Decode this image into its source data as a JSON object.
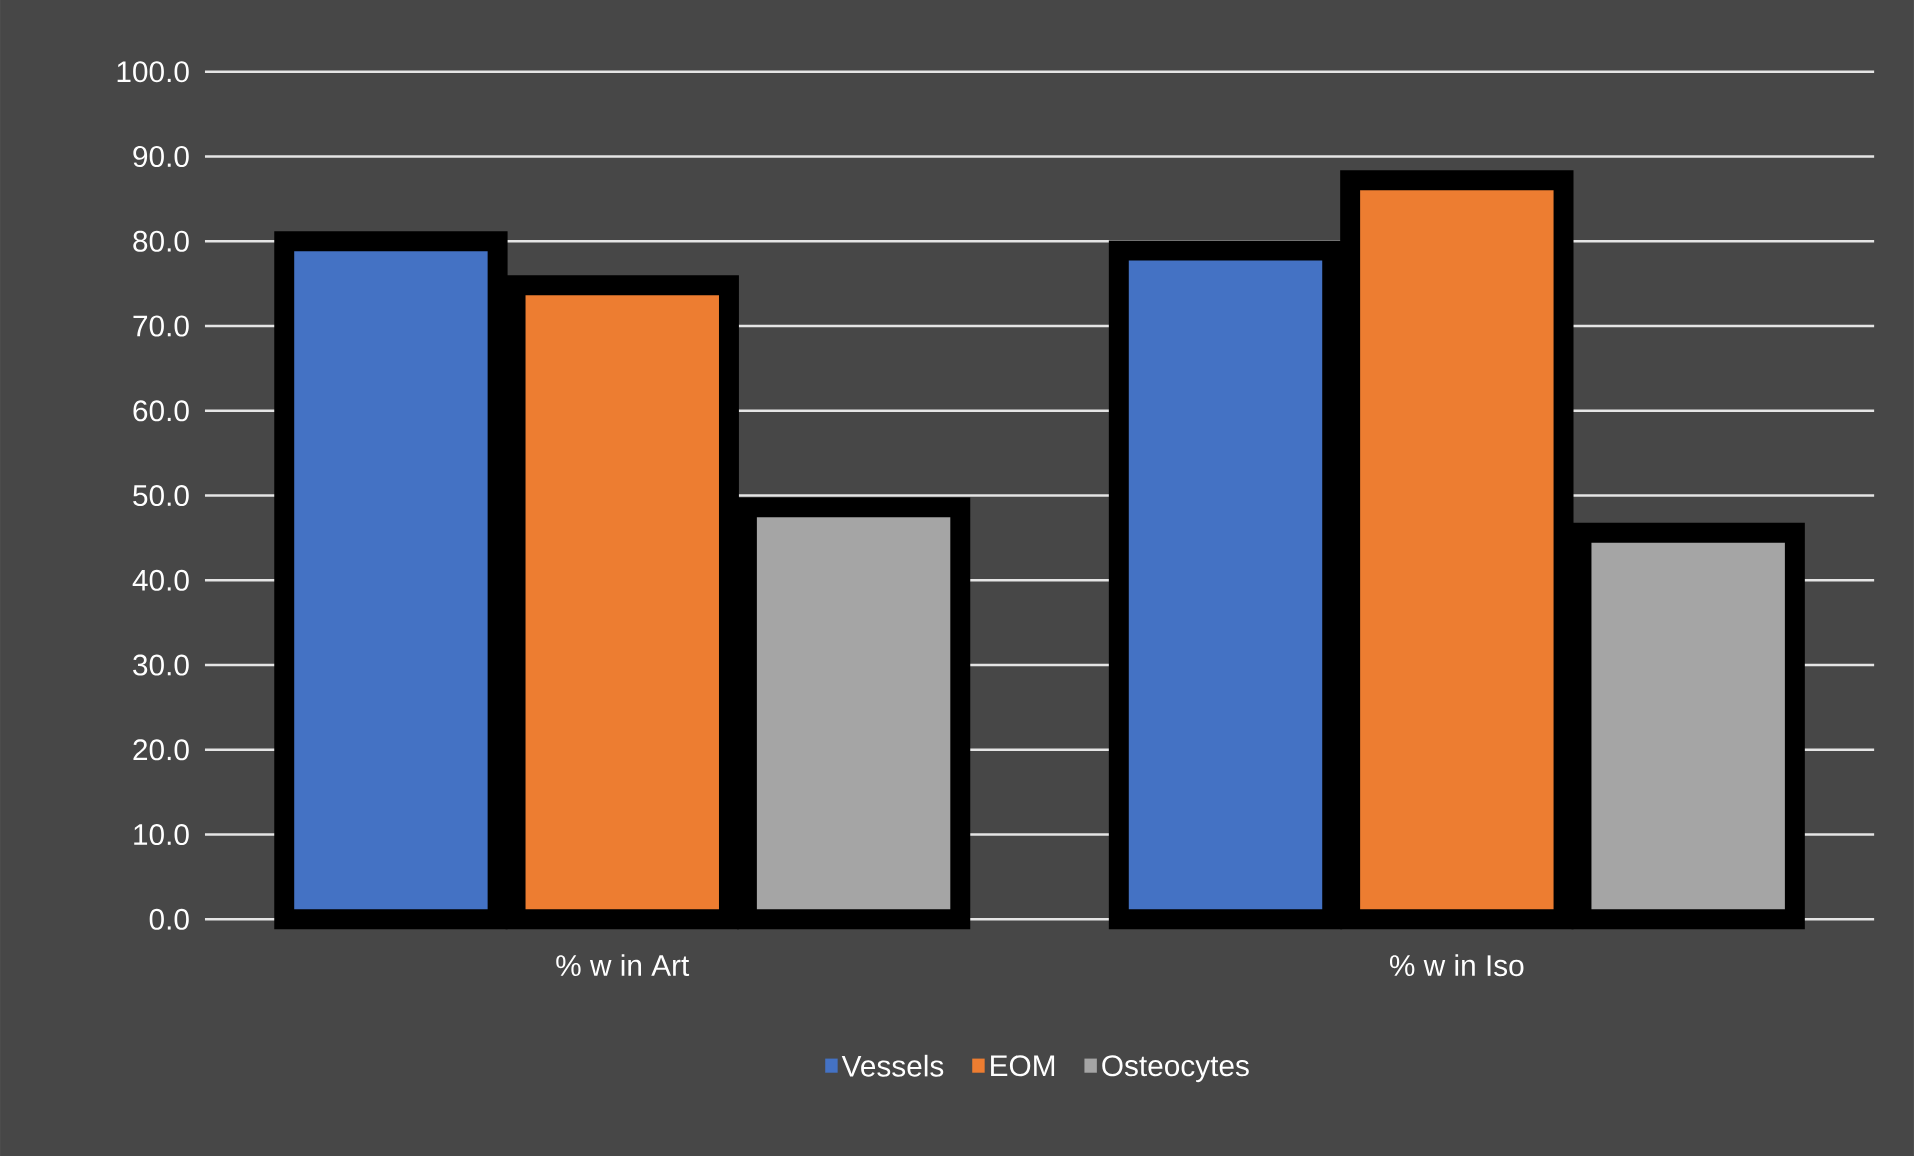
{
  "chart_data": {
    "type": "bar",
    "categories": [
      "% w in Art",
      "% w in Iso"
    ],
    "series": [
      {
        "name": "Vessels",
        "color": "#4472c4",
        "values": [
          80.0,
          78.9
        ]
      },
      {
        "name": "EOM",
        "color": "#ed7d31",
        "values": [
          74.8,
          87.2
        ]
      },
      {
        "name": "Osteocytes",
        "color": "#a5a5a5",
        "values": [
          48.6,
          45.6
        ]
      }
    ],
    "ylim": [
      0,
      100
    ],
    "yticks": [
      {
        "value": 0,
        "label": "0.0"
      },
      {
        "value": 10,
        "label": "10.0"
      },
      {
        "value": 20,
        "label": "20.0"
      },
      {
        "value": 30,
        "label": "30.0"
      },
      {
        "value": 40,
        "label": "40.0"
      },
      {
        "value": 50,
        "label": "50.0"
      },
      {
        "value": 60,
        "label": "60.0"
      },
      {
        "value": 70,
        "label": "70.0"
      },
      {
        "value": 80,
        "label": "80.0"
      },
      {
        "value": 90,
        "label": "90.0"
      },
      {
        "value": 100,
        "label": "100.0"
      }
    ],
    "grid": "y",
    "legend": "bottom"
  }
}
